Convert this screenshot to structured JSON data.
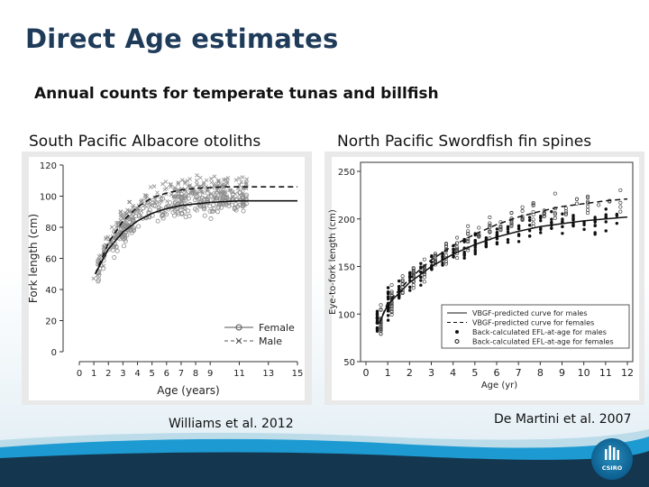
{
  "slide": {
    "title": "Direct Age estimates",
    "subtitle": "Annual counts for temperate tunas and billfish"
  },
  "left_panel": {
    "caption": "South Pacific Albacore otoliths",
    "credit": "Williams et al. 2012"
  },
  "right_panel": {
    "caption": "North Pacific Swordfish fin spines",
    "credit": "De Martini et al. 2007"
  },
  "logo": {
    "label": "CSIRO",
    "color": "#0c5f8f"
  },
  "colors": {
    "title": "#1f3b5a",
    "footer_band": "#1d9ad1",
    "footer_dark": "#14364e"
  },
  "chart_data": [
    {
      "type": "scatter",
      "title": "",
      "xlabel": "Age (years)",
      "ylabel": "Fork length (cm)",
      "xlim": [
        0,
        15
      ],
      "ylim": [
        0,
        120
      ],
      "x_ticks": [
        0,
        1,
        2,
        3,
        4,
        5,
        6,
        7,
        8,
        9,
        11,
        13,
        15
      ],
      "y_ticks": [
        0,
        20,
        40,
        60,
        80,
        100,
        120
      ],
      "legend": {
        "placement": "bottom-right",
        "entries": [
          "Female",
          "Male"
        ]
      },
      "series": [
        {
          "name": "Female",
          "marker": "circle",
          "line": "solid",
          "curve": {
            "x": [
              1.1,
              2,
              3,
              4,
              5,
              6,
              7,
              8,
              9,
              10,
              11,
              12,
              13,
              14,
              15
            ],
            "y": [
              50,
              66,
              77,
              84,
              89,
              92,
              94,
              95,
              96,
              96.5,
              97,
              97,
              97,
              97,
              97
            ]
          }
        },
        {
          "name": "Male",
          "marker": "cross",
          "line": "dashed",
          "curve": {
            "x": [
              1.1,
              2,
              3,
              4,
              5,
              6,
              7,
              8,
              9,
              10,
              11,
              12,
              13,
              14,
              15
            ],
            "y": [
              50,
              70,
              84,
              93,
              99,
              102,
              104,
              105,
              105.5,
              106,
              106,
              106,
              106,
              106,
              106
            ]
          }
        }
      ]
    },
    {
      "type": "scatter",
      "title": "",
      "xlabel": "Age (yr)",
      "ylabel": "Eye-to-fork length (cm)",
      "xlim": [
        0,
        12
      ],
      "ylim": [
        50,
        250
      ],
      "x_ticks": [
        0,
        1,
        2,
        3,
        4,
        5,
        6,
        7,
        8,
        9,
        10,
        11,
        12
      ],
      "y_ticks": [
        50,
        100,
        150,
        200,
        250
      ],
      "legend": {
        "placement": "bottom-right",
        "entries": [
          "VBGF-predicted curve for males",
          "VBGF-predicted curve for females",
          "Back-calculated EFL-at-age for males",
          "Back-calculated EFL-at-age for females"
        ]
      },
      "series": [
        {
          "name": "VBGF-predicted curve for males",
          "line": "solid",
          "x": [
            0.6,
            1,
            2,
            3,
            4,
            5,
            6,
            7,
            8,
            9,
            10,
            11,
            12
          ],
          "y": [
            90,
            110,
            133,
            150,
            163,
            173,
            181,
            187,
            192,
            195,
            198,
            200,
            202
          ]
        },
        {
          "name": "VBGF-predicted curve for females",
          "line": "dashed",
          "x": [
            0.6,
            1,
            2,
            3,
            4,
            5,
            6,
            7,
            8,
            9,
            10,
            11,
            12
          ],
          "y": [
            90,
            112,
            137,
            157,
            172,
            184,
            194,
            202,
            208,
            213,
            216,
            219,
            221
          ]
        }
      ]
    }
  ]
}
